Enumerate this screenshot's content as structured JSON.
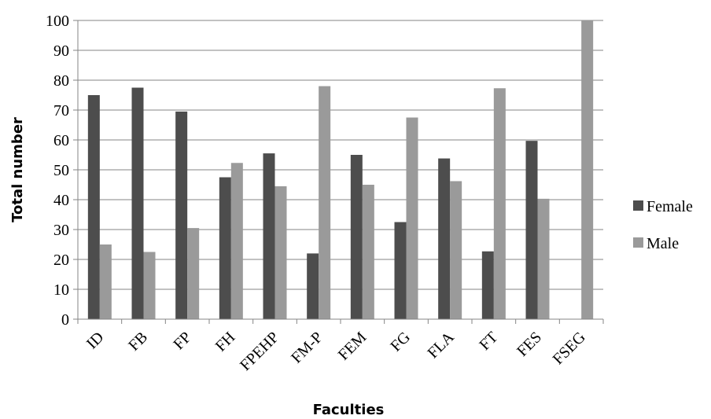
{
  "chart_data": {
    "type": "bar",
    "xlabel": "Faculties",
    "ylabel": "Total number",
    "ylim": [
      0,
      100
    ],
    "yticks": [
      0,
      10,
      20,
      30,
      40,
      50,
      60,
      70,
      80,
      90,
      100
    ],
    "categories": [
      "ID",
      "FB",
      "FP",
      "FH",
      "FPEHP",
      "FM-P",
      "FEM",
      "FG",
      "FLA",
      "FT",
      "FES",
      "FSEG"
    ],
    "series": [
      {
        "name": "Female",
        "color": "#4d4d4d",
        "values": [
          75,
          77.5,
          69.5,
          47.5,
          55.5,
          22,
          55,
          32.5,
          53.8,
          22.7,
          59.7,
          0
        ]
      },
      {
        "name": "Male",
        "color": "#9a9a9a",
        "values": [
          25,
          22.5,
          30.5,
          52.3,
          44.5,
          78,
          45,
          67.5,
          46.2,
          77.3,
          40.3,
          100
        ]
      }
    ],
    "grid": true,
    "legend_position": "right"
  }
}
